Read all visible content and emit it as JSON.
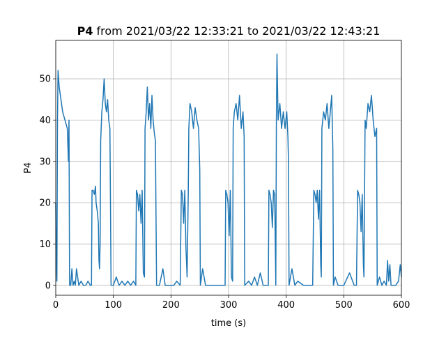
{
  "chart_data": {
    "type": "line",
    "title": {
      "bold": "P4",
      "rest": "from 2021/03/22 12:33:21 to 2021/03/22 12:43:21"
    },
    "xlabel": "time (s)",
    "ylabel": "P4",
    "color": "#1f77b4",
    "grid": true,
    "xlim": [
      0,
      600
    ],
    "ylim": [
      -2.4,
      59.3
    ],
    "xticks": [
      0,
      100,
      200,
      300,
      400,
      500,
      600
    ],
    "yticks": [
      0,
      10,
      20,
      30,
      40,
      50
    ],
    "x": [
      0,
      1,
      2,
      3,
      4,
      6,
      8,
      10,
      12,
      14,
      16,
      18,
      20,
      22,
      23,
      24,
      26,
      28,
      30,
      32,
      34,
      36,
      40,
      44,
      48,
      52,
      56,
      60,
      62,
      63,
      65,
      67,
      69,
      70,
      72,
      74,
      75,
      76,
      77,
      78,
      80,
      82,
      84,
      86,
      88,
      90,
      92,
      94,
      95,
      96,
      100,
      105,
      110,
      115,
      120,
      125,
      130,
      135,
      139,
      140,
      142,
      144,
      146,
      148,
      150,
      152,
      154,
      155,
      157,
      159,
      161,
      163,
      165,
      167,
      169,
      171,
      173,
      175,
      180,
      186,
      190,
      196,
      200,
      205,
      210,
      216,
      218,
      220,
      222,
      224,
      226,
      228,
      230,
      231,
      233,
      236,
      239,
      242,
      245,
      248,
      250,
      251,
      255,
      260,
      265,
      270,
      280,
      290,
      294,
      295,
      297,
      299,
      301,
      303,
      305,
      307,
      308,
      310,
      313,
      316,
      319,
      322,
      325,
      327,
      328,
      335,
      340,
      345,
      350,
      355,
      360,
      365,
      369,
      370,
      372,
      374,
      376,
      378,
      380,
      382,
      383,
      384,
      386,
      389,
      392,
      395,
      398,
      401,
      403,
      404,
      405,
      410,
      415,
      420,
      430,
      440,
      446,
      448,
      450,
      452,
      454,
      456,
      458,
      460,
      461,
      462,
      465,
      468,
      471,
      474,
      476,
      479,
      481,
      482,
      485,
      490,
      500,
      510,
      518,
      522,
      524,
      526,
      528,
      530,
      532,
      534,
      535,
      537,
      539,
      542,
      545,
      548,
      551,
      554,
      557,
      558,
      562,
      566,
      570,
      574,
      576,
      578,
      580,
      582,
      585,
      590,
      595,
      598,
      600
    ],
    "values": [
      20,
      5,
      1,
      40,
      52,
      48,
      46,
      44,
      42,
      41,
      40,
      39,
      38,
      30,
      40,
      0,
      0,
      4,
      0,
      1,
      0,
      4,
      0,
      1,
      0,
      0,
      1,
      0,
      0,
      23,
      23,
      22,
      24,
      20,
      18,
      15,
      6,
      4,
      10,
      35,
      42,
      45,
      50,
      44,
      42,
      45,
      40,
      38,
      20,
      0,
      0,
      2,
      0,
      1,
      0,
      1,
      0,
      1,
      0,
      23,
      22,
      18,
      22,
      15,
      23,
      3,
      2,
      38,
      42,
      48,
      40,
      44,
      38,
      46,
      40,
      37,
      35,
      0,
      0,
      4,
      0,
      0,
      0,
      0,
      1,
      0,
      23,
      22,
      15,
      23,
      9,
      2,
      22,
      38,
      44,
      42,
      38,
      43,
      40,
      38,
      28,
      0,
      4,
      0,
      0,
      0,
      0,
      0,
      0,
      23,
      22,
      20,
      12,
      23,
      2,
      1,
      38,
      42,
      44,
      40,
      46,
      38,
      42,
      36,
      0,
      1,
      0,
      2,
      0,
      3,
      0,
      0,
      0,
      23,
      22,
      20,
      14,
      23,
      22,
      0,
      40,
      56,
      40,
      44,
      38,
      42,
      38,
      42,
      36,
      30,
      0,
      4,
      0,
      1,
      0,
      0,
      0,
      23,
      22,
      20,
      23,
      16,
      23,
      5,
      2,
      38,
      42,
      40,
      44,
      38,
      41,
      46,
      33,
      0,
      2,
      0,
      0,
      3,
      0,
      0,
      23,
      22,
      20,
      13,
      22,
      5,
      2,
      40,
      38,
      44,
      42,
      46,
      40,
      36,
      38,
      0,
      2,
      0,
      1,
      0,
      6,
      1,
      5,
      0,
      0,
      0,
      1,
      5,
      2
    ]
  }
}
